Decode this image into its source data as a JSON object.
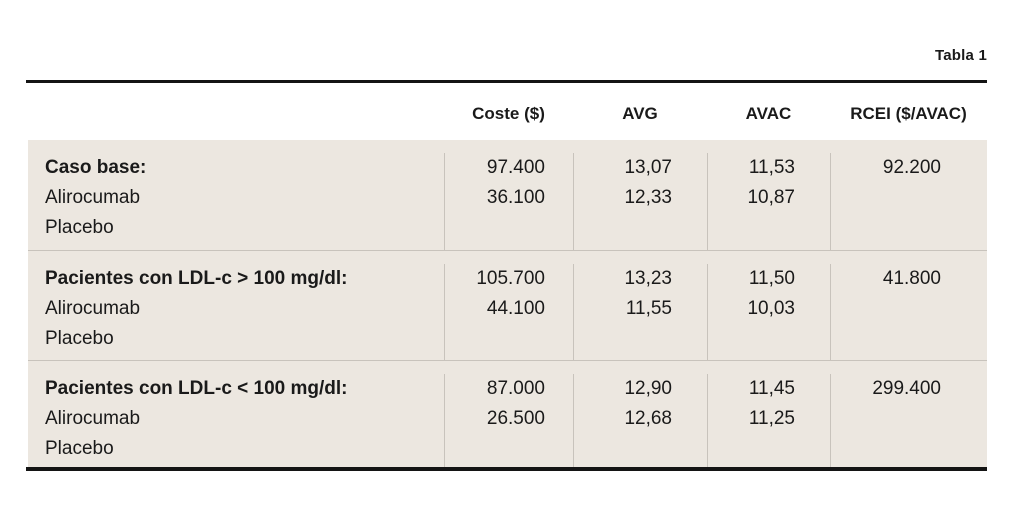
{
  "colors": {
    "table_background": "#ece7e0",
    "divider": "#c8c3bc",
    "rule": "#141414",
    "text": "#1a1a1a"
  },
  "table": {
    "caption": "Tabla 1",
    "columns": {
      "coste": "Coste ($)",
      "avg": "AVG",
      "avac": "AVAC",
      "rcei": "RCEI ($/AVAC)"
    },
    "groups": [
      {
        "label": "Caso base:",
        "rcei": "92.200",
        "rows": [
          {
            "name": "Alirocumab",
            "coste": "97.400",
            "avg": "13,07",
            "avac": "11,53"
          },
          {
            "name": "Placebo",
            "coste": "36.100",
            "avg": "12,33",
            "avac": "10,87"
          }
        ]
      },
      {
        "label": "Pacientes con LDL-c > 100 mg/dl:",
        "rcei": "41.800",
        "rows": [
          {
            "name": "Alirocumab",
            "coste": "105.700",
            "avg": "13,23",
            "avac": "11,50"
          },
          {
            "name": "Placebo",
            "coste": "44.100",
            "avg": "11,55",
            "avac": "10,03"
          }
        ]
      },
      {
        "label": "Pacientes con LDL-c < 100 mg/dl:",
        "rcei": "299.400",
        "rows": [
          {
            "name": "Alirocumab",
            "coste": "87.000",
            "avg": "12,90",
            "avac": "11,45"
          },
          {
            "name": "Placebo",
            "coste": "26.500",
            "avg": "12,68",
            "avac": "11,25"
          }
        ]
      }
    ]
  },
  "chart_data": {
    "type": "table",
    "title": "Tabla 1",
    "columns": [
      "",
      "Coste ($)",
      "AVG",
      "AVAC",
      "RCEI ($/AVAC)"
    ],
    "rows": [
      [
        "Caso base:",
        "",
        "",
        "",
        ""
      ],
      [
        "Alirocumab",
        "97.400",
        "13,07",
        "11,53",
        "92.200"
      ],
      [
        "Placebo",
        "36.100",
        "12,33",
        "10,87",
        ""
      ],
      [
        "Pacientes con LDL-c > 100 mg/dl:",
        "",
        "",
        "",
        ""
      ],
      [
        "Alirocumab",
        "105.700",
        "13,23",
        "11,50",
        "41.800"
      ],
      [
        "Placebo",
        "44.100",
        "11,55",
        "10,03",
        ""
      ],
      [
        "Pacientes con LDL-c < 100 mg/dl:",
        "",
        "",
        "",
        ""
      ],
      [
        "Alirocumab",
        "87.000",
        "12,90",
        "11,45",
        "299.400"
      ],
      [
        "Placebo",
        "26.500",
        "12,68",
        "11,25",
        ""
      ]
    ]
  }
}
